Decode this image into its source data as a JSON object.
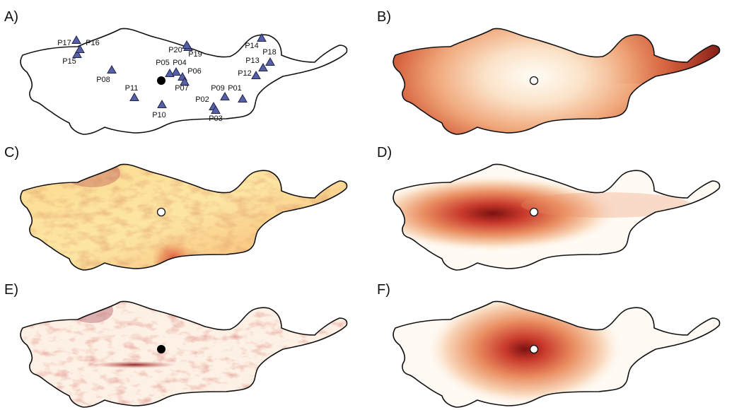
{
  "panels": [
    {
      "id": "A",
      "label": "A)",
      "kind": "stations"
    },
    {
      "id": "B",
      "label": "B)",
      "kind": "map",
      "ramp": [
        "#fffdf7",
        "#fbe2c8",
        "#f0a77a",
        "#d45f3c",
        "#8b1a1a"
      ]
    },
    {
      "id": "C",
      "label": "C)",
      "kind": "map",
      "ramp": [
        "#fff8d8",
        "#fbe09a",
        "#f3b15c",
        "#e0663a",
        "#a8323a"
      ]
    },
    {
      "id": "D",
      "label": "D)",
      "kind": "map",
      "ramp": [
        "#fffaf3",
        "#f9d9bd",
        "#ea8f62",
        "#c93a2c",
        "#7c1111"
      ]
    },
    {
      "id": "E",
      "label": "E)",
      "kind": "map",
      "ramp": [
        "#fffaf4",
        "#f9dcc8",
        "#efaa88",
        "#c95a56",
        "#8e2a2a"
      ]
    },
    {
      "id": "F",
      "label": "F)",
      "kind": "map",
      "ramp": [
        "#fffaf3",
        "#f9d9bd",
        "#ea8f62",
        "#c93a2c",
        "#7c1111"
      ]
    }
  ],
  "stations": [
    "P01",
    "P02",
    "P03",
    "P04",
    "P05",
    "P06",
    "P07",
    "P08",
    "P09",
    "P10",
    "P11",
    "P12",
    "P13",
    "P14",
    "P15",
    "P16",
    "P17",
    "P18",
    "P19",
    "P20"
  ],
  "colors": {
    "station_marker": "#5560a8",
    "station_edge": "#20244d",
    "source_filled": "#000000",
    "source_open": "#ffffff",
    "outline": "#111111"
  },
  "icons": {
    "station": "triangle-icon",
    "source": "circle-icon"
  }
}
